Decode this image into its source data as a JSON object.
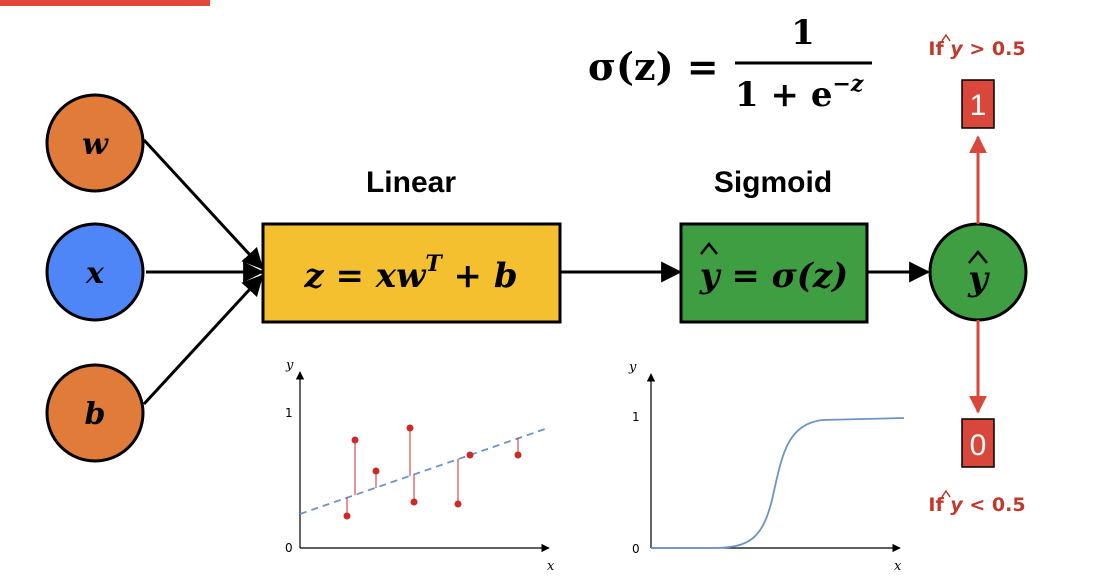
{
  "formula": {
    "lhs": "σ(z) =",
    "numerator": "1",
    "denominator_base": "1 + e",
    "denominator_exp": "−z"
  },
  "inputs": {
    "w": "w",
    "x": "x",
    "b": "b"
  },
  "linear": {
    "heading": "Linear",
    "z_part": "z = xw",
    "sup": "T",
    "tail": " + b"
  },
  "sigmoid": {
    "heading": "Sigmoid",
    "equation_pre": "y",
    "equation_post": " = σ(z)"
  },
  "output": {
    "label": "y"
  },
  "decision": {
    "top_condition_pre": "If ",
    "top_condition_var": "y",
    "top_condition_post": " > 0.5",
    "top_value": "1",
    "bottom_condition_pre": "If ",
    "bottom_condition_var": "y",
    "bottom_condition_post": " < 0.5",
    "bottom_value": "0"
  },
  "linear_plot": {
    "y_axis_label": "y",
    "x_axis_label": "x",
    "tick_one": "1",
    "tick_zero": "0"
  },
  "sigmoid_plot": {
    "y_axis_label": "y",
    "x_axis_label": "x",
    "tick_one": "1",
    "tick_zero": "0"
  },
  "colors": {
    "orange_node": "#e07b39",
    "blue_node": "#4f86f7",
    "linear_box": "#f5c030",
    "sigmoid_box": "#3f9e41",
    "output_node": "#3f9e41",
    "decision_red": "#d9473b",
    "curve_blue": "#6b93c8",
    "point_red": "#cc2929"
  }
}
